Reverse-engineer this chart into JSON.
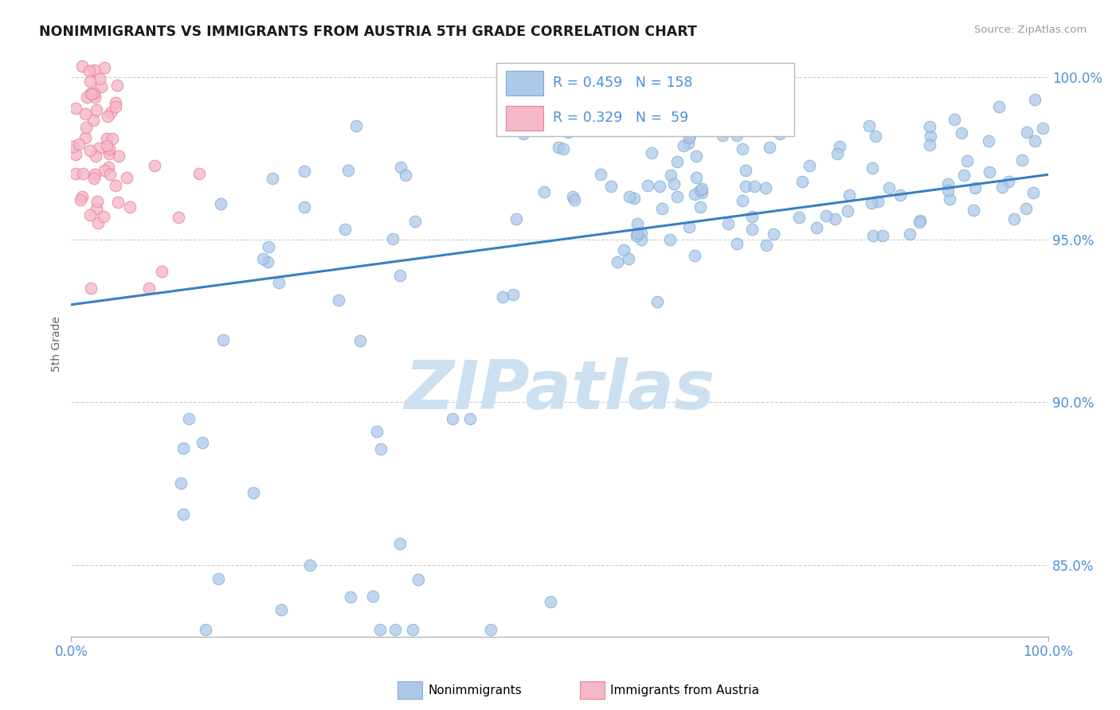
{
  "title": "NONIMMIGRANTS VS IMMIGRANTS FROM AUSTRIA 5TH GRADE CORRELATION CHART",
  "source": "Source: ZipAtlas.com",
  "ylabel": "5th Grade",
  "xlim": [
    0.0,
    1.0
  ],
  "ylim": [
    0.828,
    1.008
  ],
  "blue_R": 0.459,
  "blue_N": 158,
  "pink_R": 0.329,
  "pink_N": 59,
  "blue_color": "#aec9e8",
  "blue_edge": "#7aaed6",
  "pink_color": "#f5b8c8",
  "pink_edge": "#e8829e",
  "trend_color": "#3a7fc1",
  "grid_color": "#cccccc",
  "title_color": "#1a1a1a",
  "axis_label_color": "#4a90d9",
  "legend_text_color": "#4a90d9",
  "watermark_color": "#cce0f0",
  "trend_y0": 0.93,
  "trend_y1": 0.97
}
